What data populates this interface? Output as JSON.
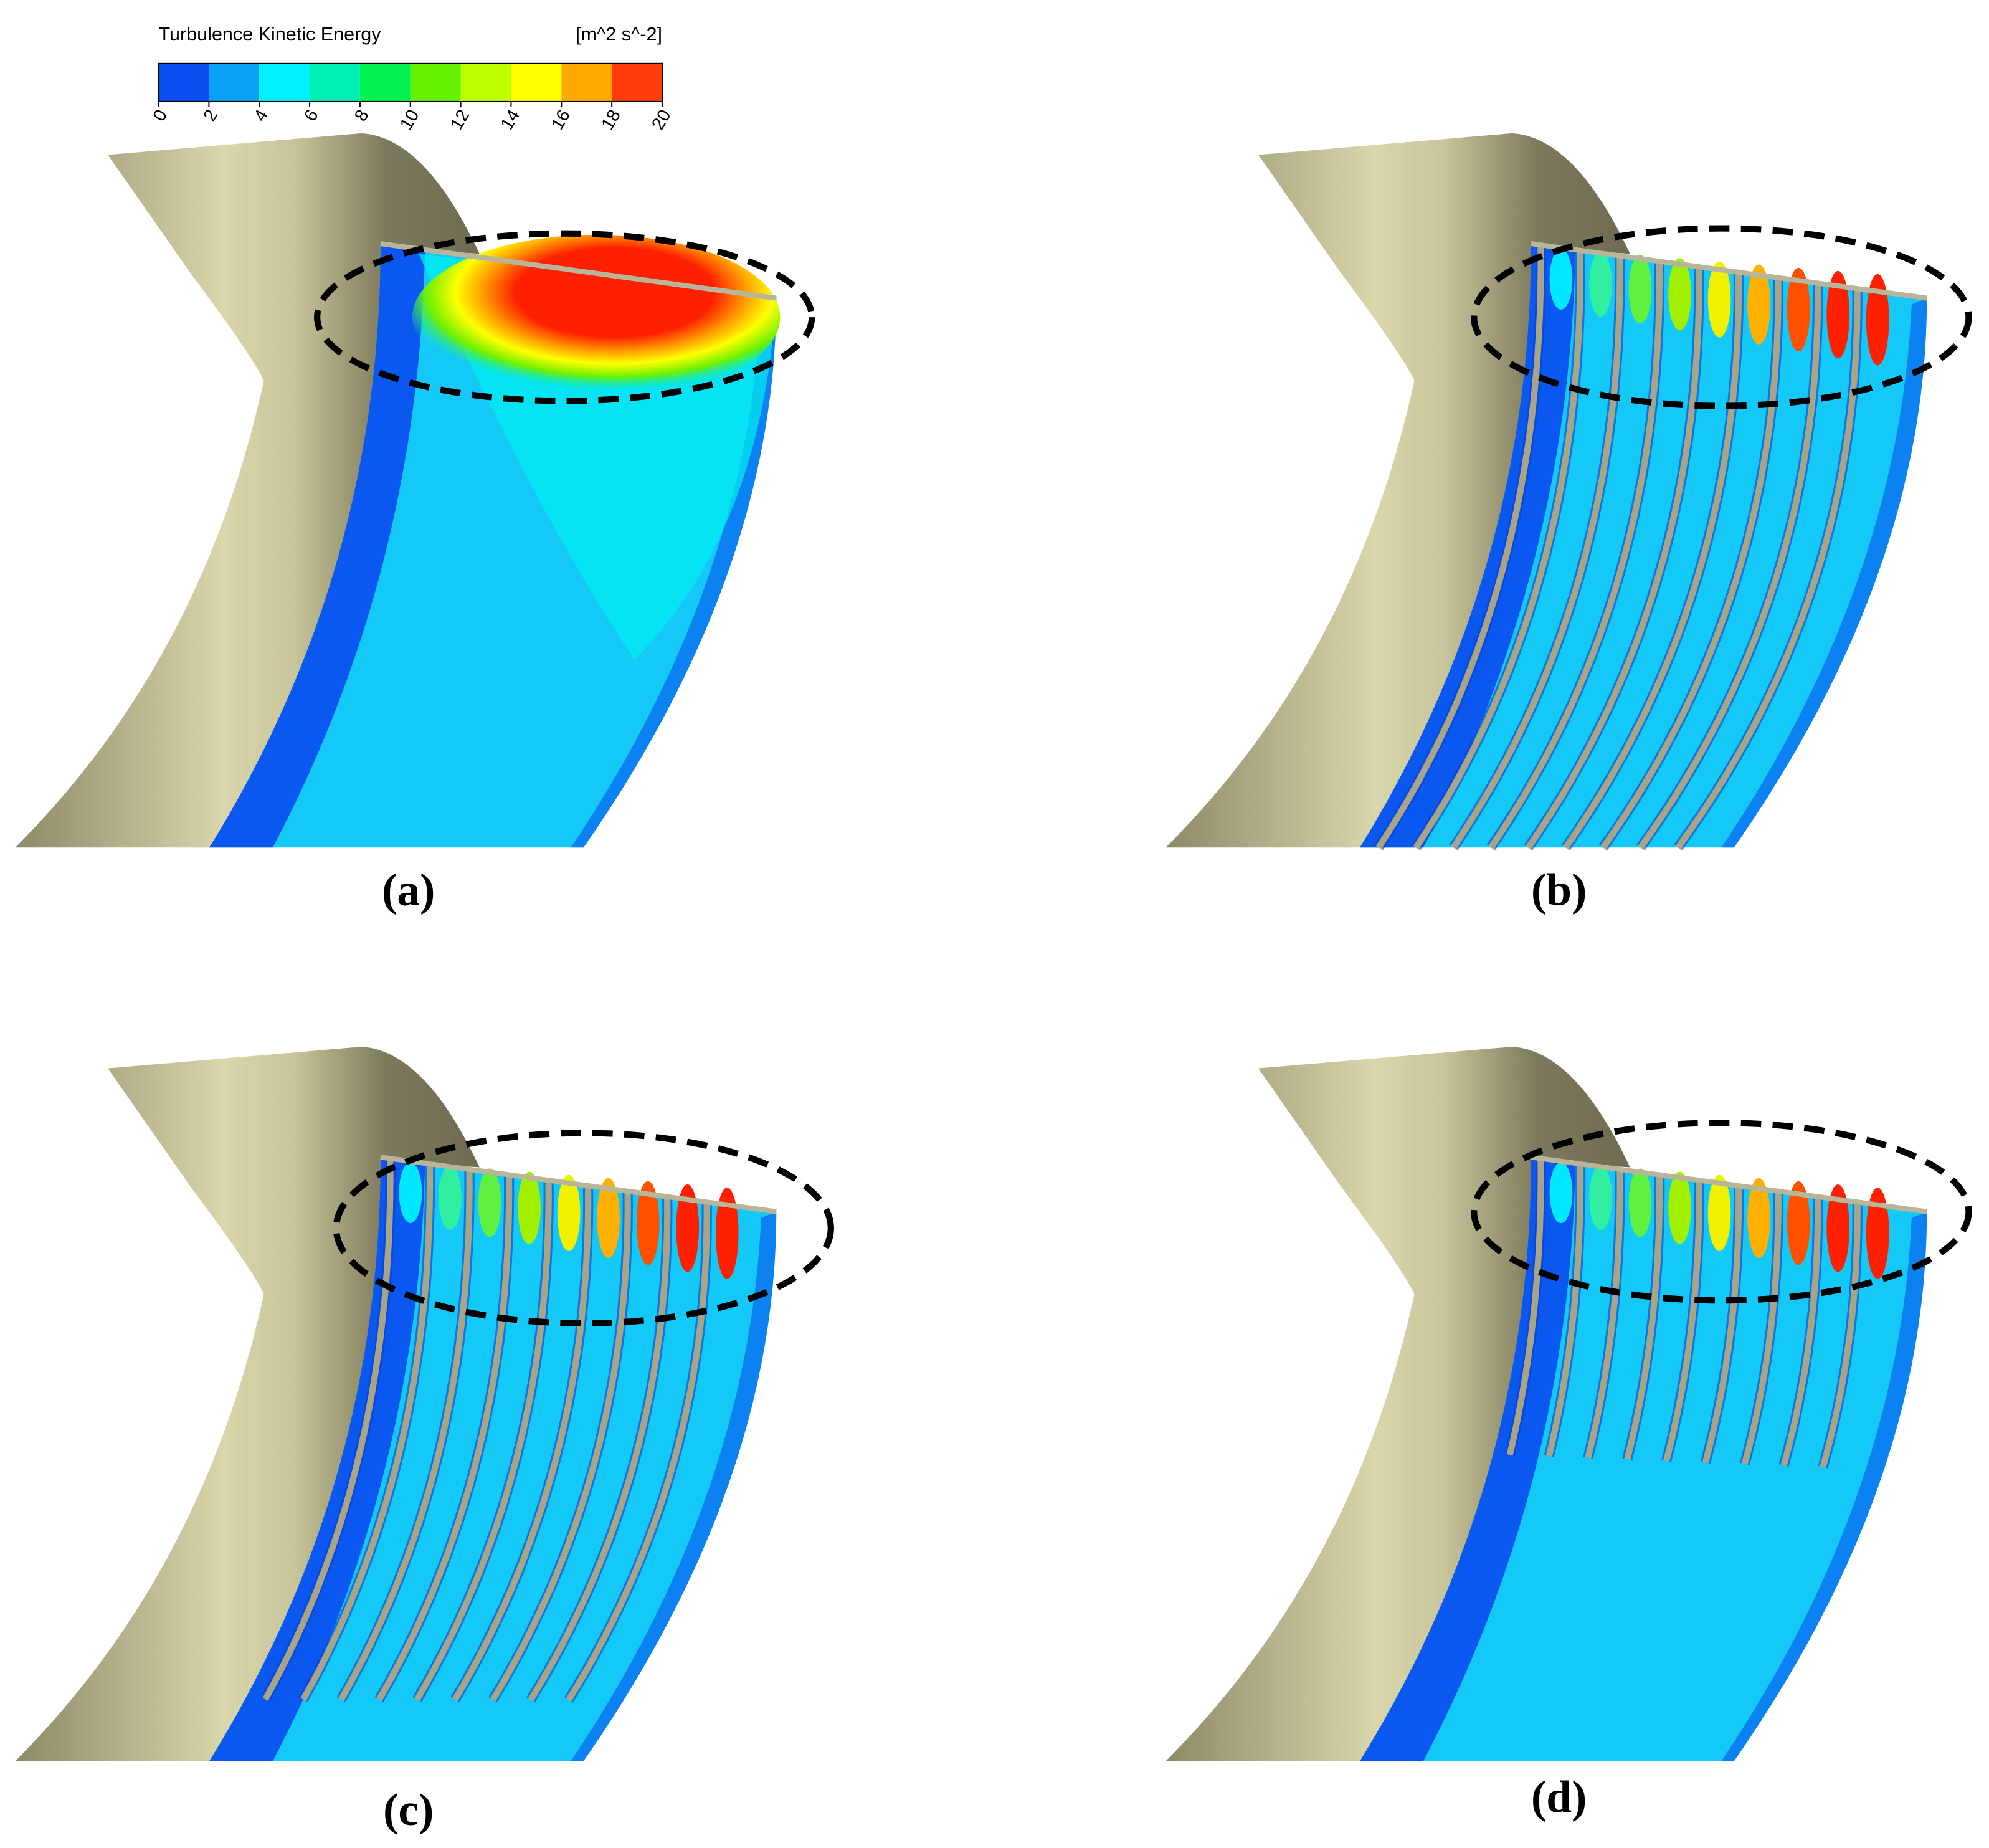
{
  "colorbar": {
    "title": "Turbulence Kinetic Energy",
    "unit": "[m^2 s^-2]",
    "ticks": [
      0,
      2,
      4,
      6,
      8,
      10,
      12,
      14,
      16,
      18,
      20
    ],
    "colors": [
      "#0a50f0",
      "#0aa0f5",
      "#00f0ff",
      "#00f0b4",
      "#00f050",
      "#64f000",
      "#beff00",
      "#ffff00",
      "#ffaa00",
      "#ff3c0a"
    ]
  },
  "panels": [
    {
      "label": "(a)"
    },
    {
      "label": "(b)"
    },
    {
      "label": "(c)"
    },
    {
      "label": "(d)"
    }
  ]
}
